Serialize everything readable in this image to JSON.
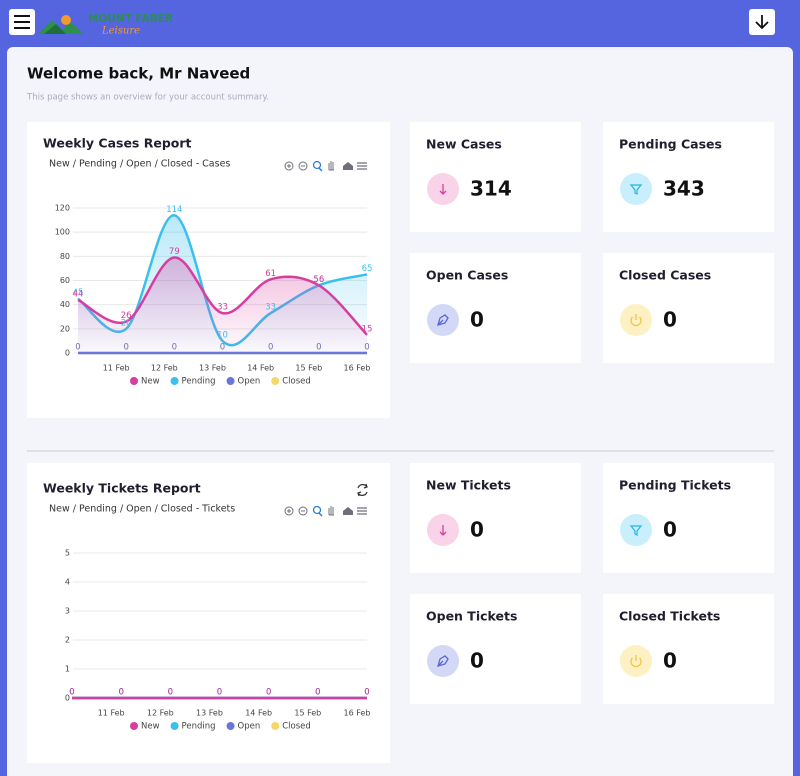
{
  "header": {
    "brand": "MOUNT FABER",
    "brand_sub": "Leisure"
  },
  "welcome": {
    "title": "Welcome back, Mr Naveed",
    "subtitle": "This page shows an overview for your account summary."
  },
  "cases_chart": {
    "type": "line",
    "title": "Weekly Cases Report",
    "subtitle": "New / Pending / Open / Closed - Cases",
    "categories": [
      null,
      "11 Feb",
      "12 Feb",
      "13 Feb",
      "14 Feb",
      "15 Feb",
      "16 Feb"
    ],
    "series": [
      {
        "name": "New",
        "color": "#d63ea0",
        "area": true,
        "values": [
          44,
          26,
          79,
          33,
          61,
          56,
          15
        ]
      },
      {
        "name": "Pending",
        "color": "#3bbfef",
        "area": true,
        "values": [
          45,
          20,
          114,
          10,
          33,
          56,
          65
        ]
      },
      {
        "name": "Open",
        "color": "#6b76dc",
        "area": false,
        "values": [
          0,
          0,
          0,
          0,
          0,
          0,
          0
        ]
      },
      {
        "name": "Closed",
        "color": "#f5d76e",
        "area": false,
        "values": [
          0,
          0,
          0,
          0,
          0,
          0,
          0
        ]
      }
    ],
    "ylim": [
      0,
      120
    ],
    "yticks": [
      0,
      20,
      40,
      60,
      80,
      100,
      120
    ],
    "grid": true
  },
  "case_stats": [
    {
      "label": "New Cases",
      "value": 314
    },
    {
      "label": "Pending Cases",
      "value": 343
    },
    {
      "label": "Open Cases",
      "value": 0
    },
    {
      "label": "Closed Cases",
      "value": 0
    }
  ],
  "tickets_chart": {
    "type": "line",
    "title": "Weekly Tickets Report",
    "subtitle": "New / Pending / Open / Closed - Tickets",
    "categories": [
      null,
      "11 Feb",
      "12 Feb",
      "13 Feb",
      "14 Feb",
      "15 Feb",
      "16 Feb"
    ],
    "series": [
      {
        "name": "New",
        "color": "#d63ea0",
        "area": true,
        "values": [
          0,
          0,
          0,
          0,
          0,
          0,
          0
        ]
      },
      {
        "name": "Pending",
        "color": "#3bbfef",
        "area": true,
        "values": [
          0,
          0,
          0,
          0,
          0,
          0,
          0
        ]
      },
      {
        "name": "Open",
        "color": "#6b76dc",
        "area": false,
        "values": [
          0,
          0,
          0,
          0,
          0,
          0,
          0
        ]
      },
      {
        "name": "Closed",
        "color": "#f5d76e",
        "area": false,
        "values": [
          0,
          0,
          0,
          0,
          0,
          0,
          0
        ]
      }
    ],
    "ylim": [
      0,
      5
    ],
    "yticks": [
      0,
      1,
      2,
      3,
      4,
      5
    ],
    "grid": true
  },
  "ticket_stats": [
    {
      "label": "New Tickets",
      "value": 0
    },
    {
      "label": "Pending Tickets",
      "value": 0
    },
    {
      "label": "Open Tickets",
      "value": 0
    },
    {
      "label": "Closed Tickets",
      "value": 0
    }
  ]
}
